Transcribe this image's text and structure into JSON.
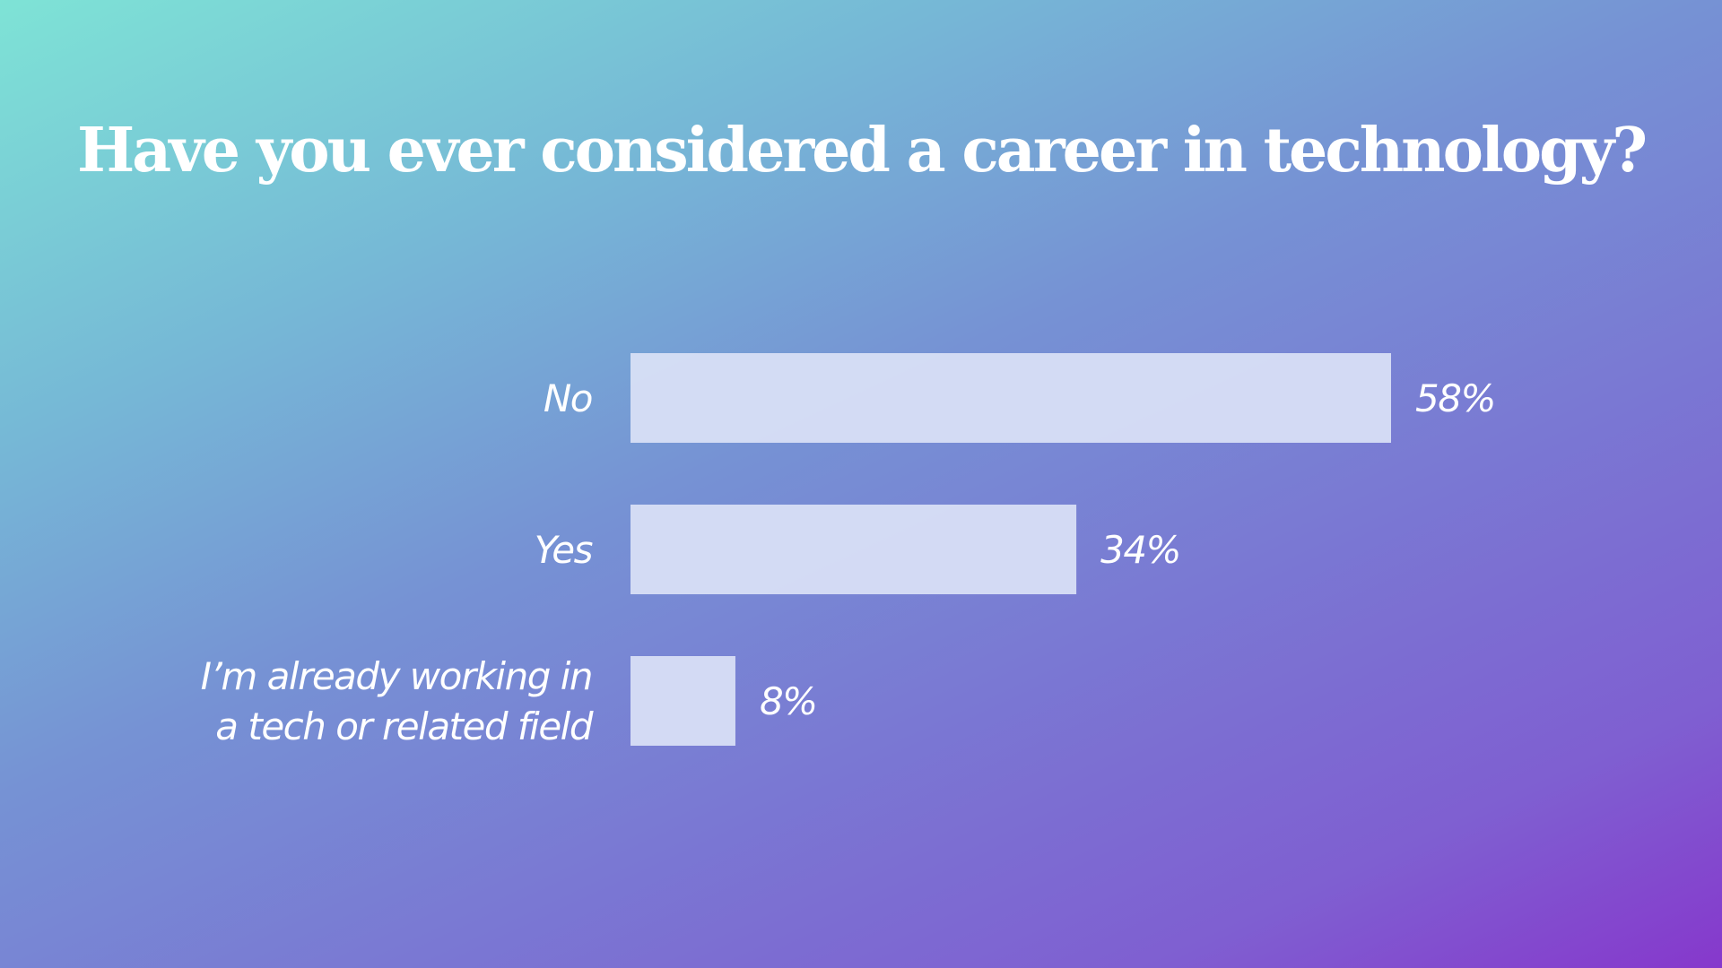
{
  "chart_data": {
    "type": "bar",
    "orientation": "horizontal",
    "title": "Have you ever considered a career in technology?",
    "categories": [
      [
        "No"
      ],
      [
        "Yes"
      ],
      [
        "I’m already working in",
        "a tech or related field"
      ]
    ],
    "values": [
      58,
      34,
      8
    ],
    "value_labels": [
      "58%",
      "34%",
      "8%"
    ],
    "unit": "%",
    "xlim": [
      0,
      58
    ],
    "grid": false,
    "legend": "none",
    "colors": {
      "bar": "#dbe2f6",
      "text": "#ffffff",
      "background_start": "#7ee3d6",
      "background_end": "#8638cc"
    }
  }
}
